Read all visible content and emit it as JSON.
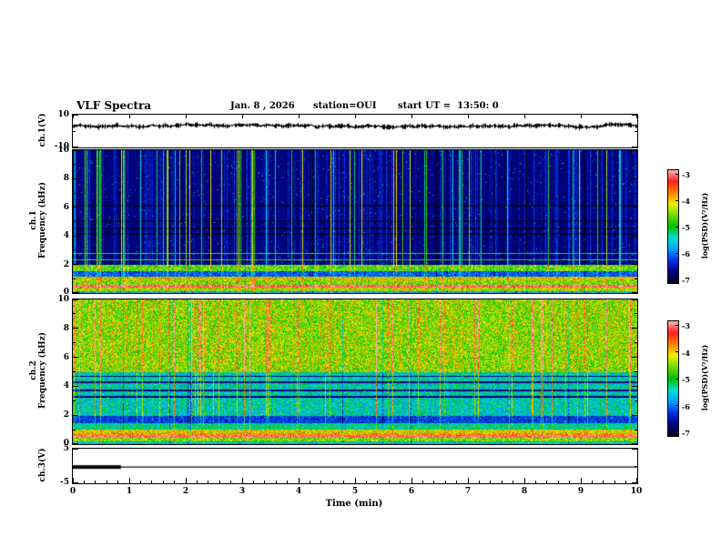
{
  "header": {
    "title": "VLF Spectra",
    "date": "Jan. 8 , 2026",
    "station": "station=OUI",
    "start_ut": "start UT =  13:50: 0"
  },
  "chart_data": {
    "type": "heatmap",
    "subtype": "multi-panel VLF spectrogram with waveform strips",
    "xaxis": {
      "label": "Time (min)",
      "min": 0,
      "max": 10,
      "ticks": [
        0,
        1,
        2,
        3,
        4,
        5,
        6,
        7,
        8,
        9,
        10
      ],
      "minor_step": 0.2
    },
    "color_scale": {
      "label": "log(PSD)(V²/Hz)",
      "ticks": [
        -3,
        -4,
        -5,
        -6,
        -7
      ],
      "range": [
        -7,
        -3
      ],
      "stops": [
        "#000018",
        "#000080",
        "#0030e0",
        "#00a0ff",
        "#00e0d0",
        "#00c000",
        "#70d800",
        "#f0f000",
        "#ff8000",
        "#ff2020",
        "#ffb0b0"
      ]
    },
    "panels": [
      {
        "id": "ch1-waveform",
        "type": "line",
        "ylabel": "ch.1(V)",
        "ylim": [
          -10,
          10
        ],
        "yticks": [
          10,
          -10
        ],
        "baseline_v": 3,
        "noise_amp_v": 1.5,
        "description": "Flat dense noisy black trace near +3 V across the full 10 minutes"
      },
      {
        "id": "ch1-spectrogram",
        "type": "heatmap",
        "ylabel1": "ch.1",
        "ylabel2": "Frequency (kHz)",
        "ylim": [
          0,
          10
        ],
        "yticks": [
          0,
          2,
          4,
          6,
          8,
          10
        ],
        "minor_yticks": [
          1,
          3,
          5,
          7,
          9
        ],
        "description": "Dark blue/black background above 2 kHz with many thin vertical sferic streaks (cyan-green), black horizontal interference lines near 4.1, 4.5, 5.0 and 6.1 kHz, thin green lines near 2.4 and 2.8 kHz, bright green speckled band 1.5-2 kHz, red hum line near 0.5 kHz, mixed bright band below 1 kHz"
      },
      {
        "id": "ch2-spectrogram",
        "type": "heatmap",
        "ylabel1": "ch.2",
        "ylabel2": "Frequency (kHz)",
        "ylim": [
          0,
          10
        ],
        "yticks": [
          0,
          2,
          4,
          6,
          8,
          10
        ],
        "minor_yticks": [
          1,
          3,
          5,
          7,
          9
        ],
        "description": "Brighter channel: green-yellow speckled emission above 5 kHz, blue-green 2-5 kHz with dark horizontal lines near 3.3, 3.75, 4.3, 4.7 kHz, dark band 1.5-2 kHz, bright band below 1 kHz with red hum line near 0.5 kHz, vertical sferic streaks throughout"
      },
      {
        "id": "ch3-waveform",
        "type": "line",
        "ylabel": "ch.3(V)",
        "ylim": [
          -5,
          5
        ],
        "yticks": [
          5,
          -5
        ],
        "line_v": -0.3,
        "bold_segment_min": [
          0,
          0.85
        ],
        "description": "Flat thin line near 0 V across full width with a thicker segment from 0 to about 0.85 min"
      }
    ]
  }
}
